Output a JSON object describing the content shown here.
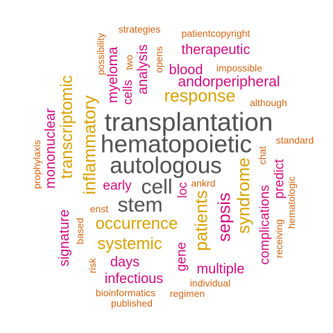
{
  "colors": {
    "gray": "#505050",
    "gold": "#d6a100",
    "magenta": "#d0097d",
    "orange": "#d2630f"
  },
  "words": {
    "transplantation": "transplantation",
    "hematopoietic": "hematopoietic",
    "autologous": "autologous",
    "cell": "cell",
    "stem": "stem",
    "response": "response",
    "occurrence": "occurrence",
    "systemic": "systemic",
    "inflammatory": "inflammatory",
    "transcriptomic": "transcriptomic",
    "patients": "patients",
    "sepsis": "sepsis",
    "syndrome": "syndrome",
    "andorperipheral": "andorperipheral",
    "therapeutic": "therapeutic",
    "blood": "blood",
    "myeloma": "myeloma",
    "analysis": "analysis",
    "cells": "cells",
    "mononuclear": "mononuclear",
    "signature": "signature",
    "early": "early",
    "days": "days",
    "infectious": "infectious",
    "multiple": "multiple",
    "gene": "gene",
    "complications": "complications",
    "predict": "predict",
    "loc": "loc",
    "strategies": "strategies",
    "possibility": "possibility",
    "two": "two",
    "opens": "opens",
    "patientcopyright": "patientcopyright",
    "impossible": "impossible",
    "although": "although",
    "standard": "standard",
    "chat": "chat",
    "hematologic": "hematologic",
    "receiving": "receiving",
    "prophylaxis": "prophylaxis",
    "ankrd": "ankrd",
    "enst": "enst",
    "based": "based",
    "risk": "risk",
    "individual": "individual",
    "bioinformatics": "bioinformatics",
    "regimen": "regimen",
    "published": "published"
  }
}
